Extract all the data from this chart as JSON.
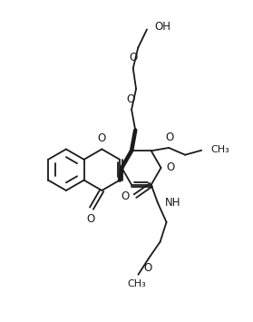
{
  "bg_color": "#ffffff",
  "line_color": "#1a1a1a",
  "line_width": 1.3,
  "figsize": [
    2.79,
    3.55
  ],
  "dpi": 100,
  "xlim": [
    0,
    10
  ],
  "ylim": [
    0,
    12.7
  ]
}
